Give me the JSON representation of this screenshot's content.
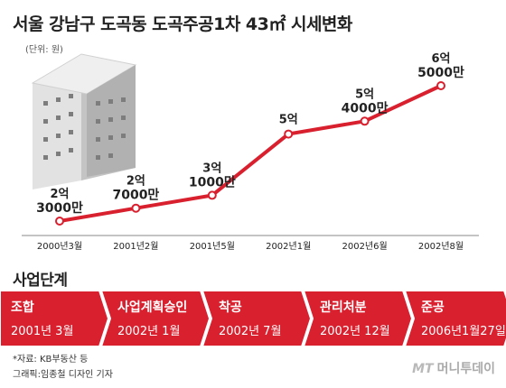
{
  "title": "서울 강남구 도곡동 도곡주공1차 43㎡ 시세변화",
  "unit_label": "(단위: 원)",
  "chart_data": {
    "type": "line",
    "categories": [
      "2000년3월",
      "2001년2월",
      "2001년5월",
      "2002년1월",
      "2002년6월",
      "2002년8월"
    ],
    "values": [
      230000000,
      270000000,
      310000000,
      500000000,
      540000000,
      650000000
    ],
    "value_labels": [
      [
        "2억",
        "3000만"
      ],
      [
        "2억",
        "7000만"
      ],
      [
        "3억",
        "1000만"
      ],
      [
        "5억",
        ""
      ],
      [
        "5억",
        "4000만"
      ],
      [
        "6억",
        "5000만"
      ]
    ],
    "line_color": "#d8202f",
    "grid": false,
    "legend": "none"
  },
  "stage_title": "사업단계",
  "stages": [
    {
      "label": "조합",
      "date": "2001년 3월"
    },
    {
      "label": "사업계획승인",
      "date": "2002년 1월"
    },
    {
      "label": "착공",
      "date": "2002년 7월"
    },
    {
      "label": "관리처분",
      "date": "2002년 12월"
    },
    {
      "label": "준공",
      "date": "2006년1월27일"
    }
  ],
  "stage_color": "#d8202f",
  "notes": {
    "source": "*자료: KB부동산 등",
    "credit": "그래픽:임종철 디자인 기자"
  },
  "brand": {
    "mt": "MT",
    "name": "머니투데이"
  }
}
